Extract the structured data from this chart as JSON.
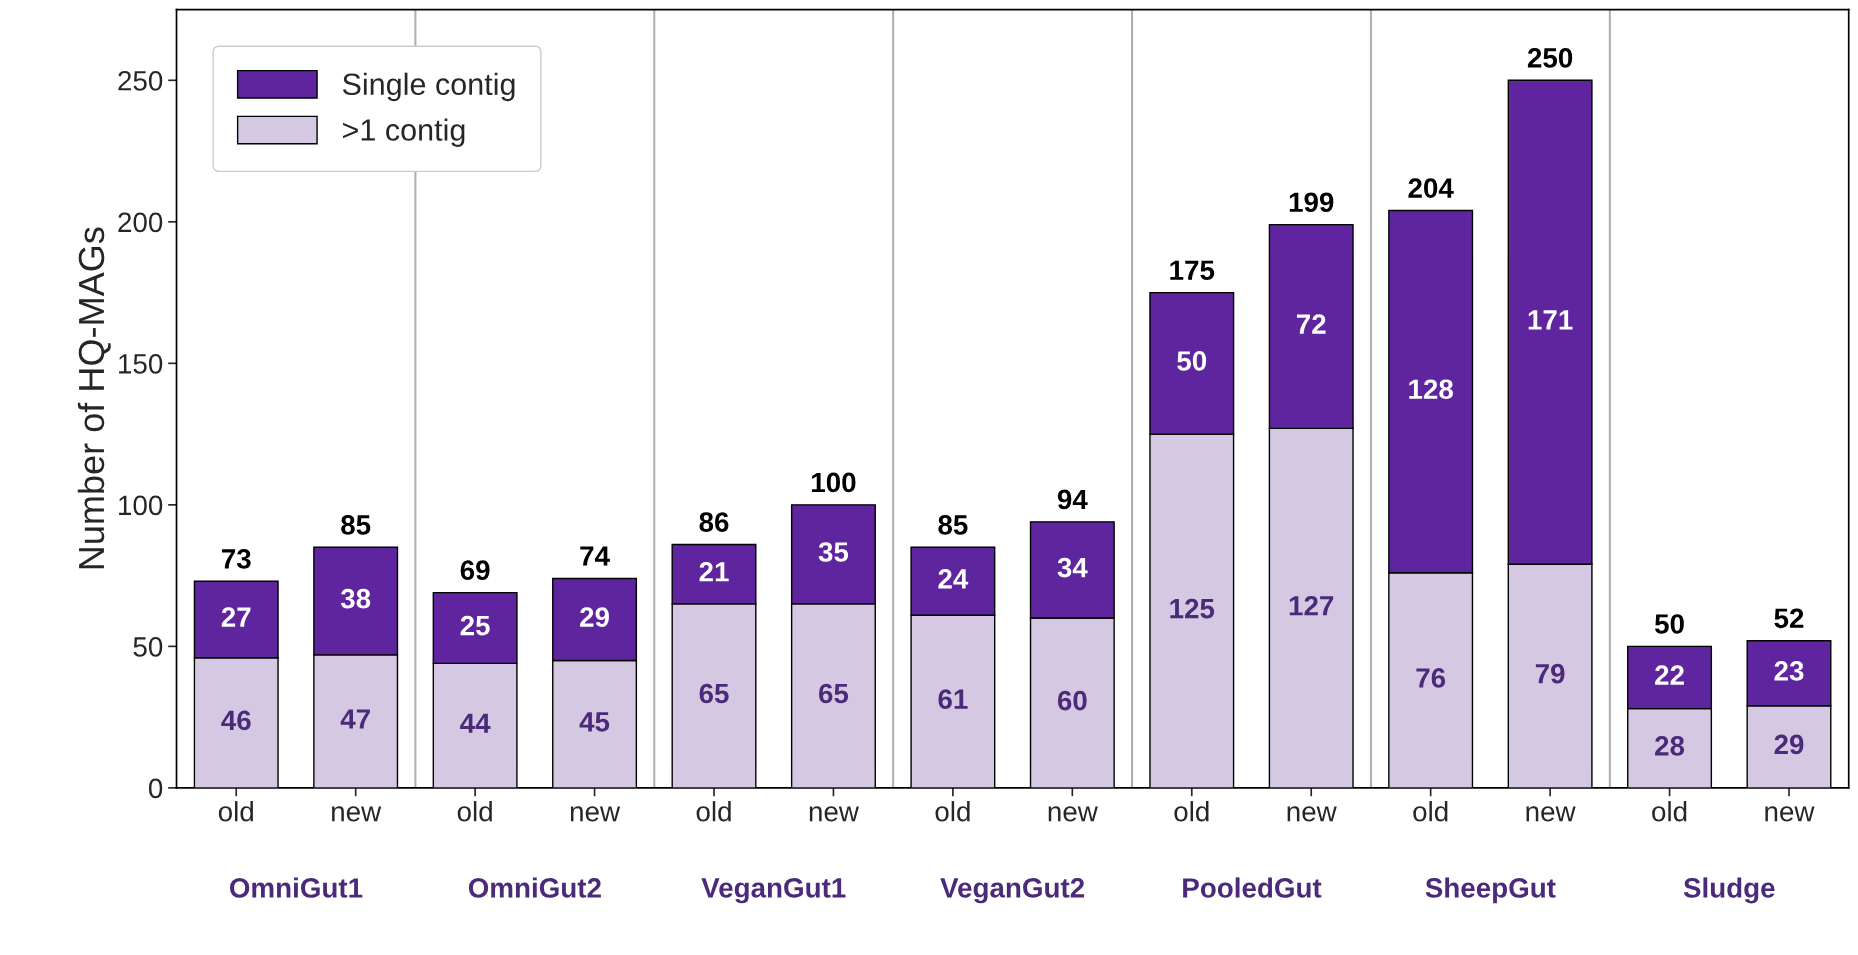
{
  "chart_data": {
    "type": "bar",
    "stacked": true,
    "ylabel": "Number of HQ-MAGs",
    "categories": [
      "old",
      "new",
      "old",
      "new",
      "old",
      "new",
      "old",
      "new",
      "old",
      "new",
      "old",
      "new",
      "old",
      "new"
    ],
    "series": [
      {
        "name": ">1 contig",
        "color": "#d4c8e2",
        "values": [
          46,
          47,
          44,
          45,
          65,
          65,
          61,
          60,
          125,
          127,
          76,
          79,
          28,
          29
        ]
      },
      {
        "name": "Single contig",
        "color": "#5f259f",
        "values": [
          27,
          38,
          25,
          29,
          21,
          35,
          24,
          34,
          50,
          72,
          128,
          171,
          22,
          23
        ]
      }
    ],
    "totals": [
      "73",
      "85",
      "69",
      "74",
      "86",
      "100",
      "85",
      "94",
      "175",
      "199",
      "204",
      "250",
      "50",
      "52"
    ],
    "data_labels": true,
    "annotations": [
      "OmniGut1",
      "OmniGut2",
      "VeganGut1",
      "VeganGut2",
      "PooledGut",
      "SheepGut",
      "Sludge"
    ],
    "ylim": [
      0,
      275
    ],
    "yticks": [
      0,
      50,
      100,
      150,
      200,
      250
    ],
    "legend": "top left",
    "grid": false
  }
}
